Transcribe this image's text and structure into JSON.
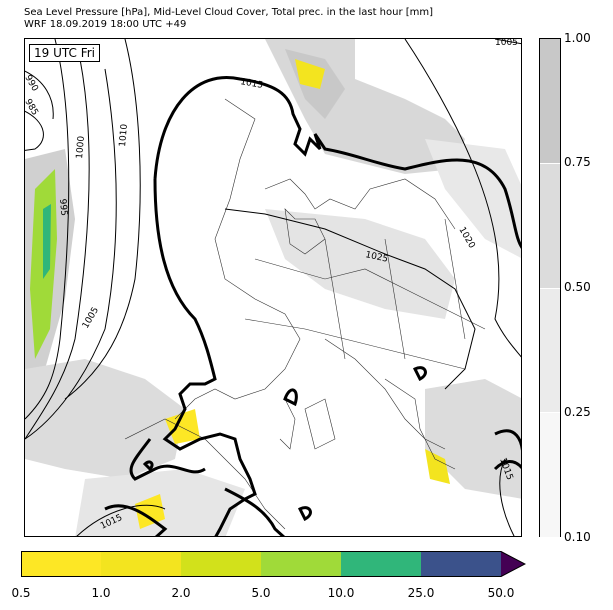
{
  "header": {
    "title_line1": "Sea Level Pressure [hPa], Mid-Level Cloud Cover, Total prec. in the last hour [mm]",
    "title_line2": "WRF 18.09.2019 18:00 UTC +49"
  },
  "map": {
    "time_label": "19 UTC Fri",
    "isobar_labels": [
      "1005",
      "990",
      "985",
      "1000",
      "995",
      "1010",
      "1015",
      "1025",
      "1020",
      "1005",
      "1015",
      "1015"
    ]
  },
  "cloud_colorbar": {
    "ticks": [
      "1.00",
      "0.75",
      "0.50",
      "0.25",
      "0.10"
    ],
    "colors": [
      "#c8c8c8",
      "#dcdcdc",
      "#ebebeb",
      "#f7f7f7"
    ]
  },
  "precip_colorbar": {
    "ticks": [
      "0.5",
      "1.0",
      "2.0",
      "5.0",
      "10.0",
      "25.0",
      "50.0"
    ],
    "colors": [
      "#fde725",
      "#f3e41f",
      "#d2e11b",
      "#a0da39",
      "#30b67a",
      "#3b528b",
      "#440154"
    ]
  }
}
